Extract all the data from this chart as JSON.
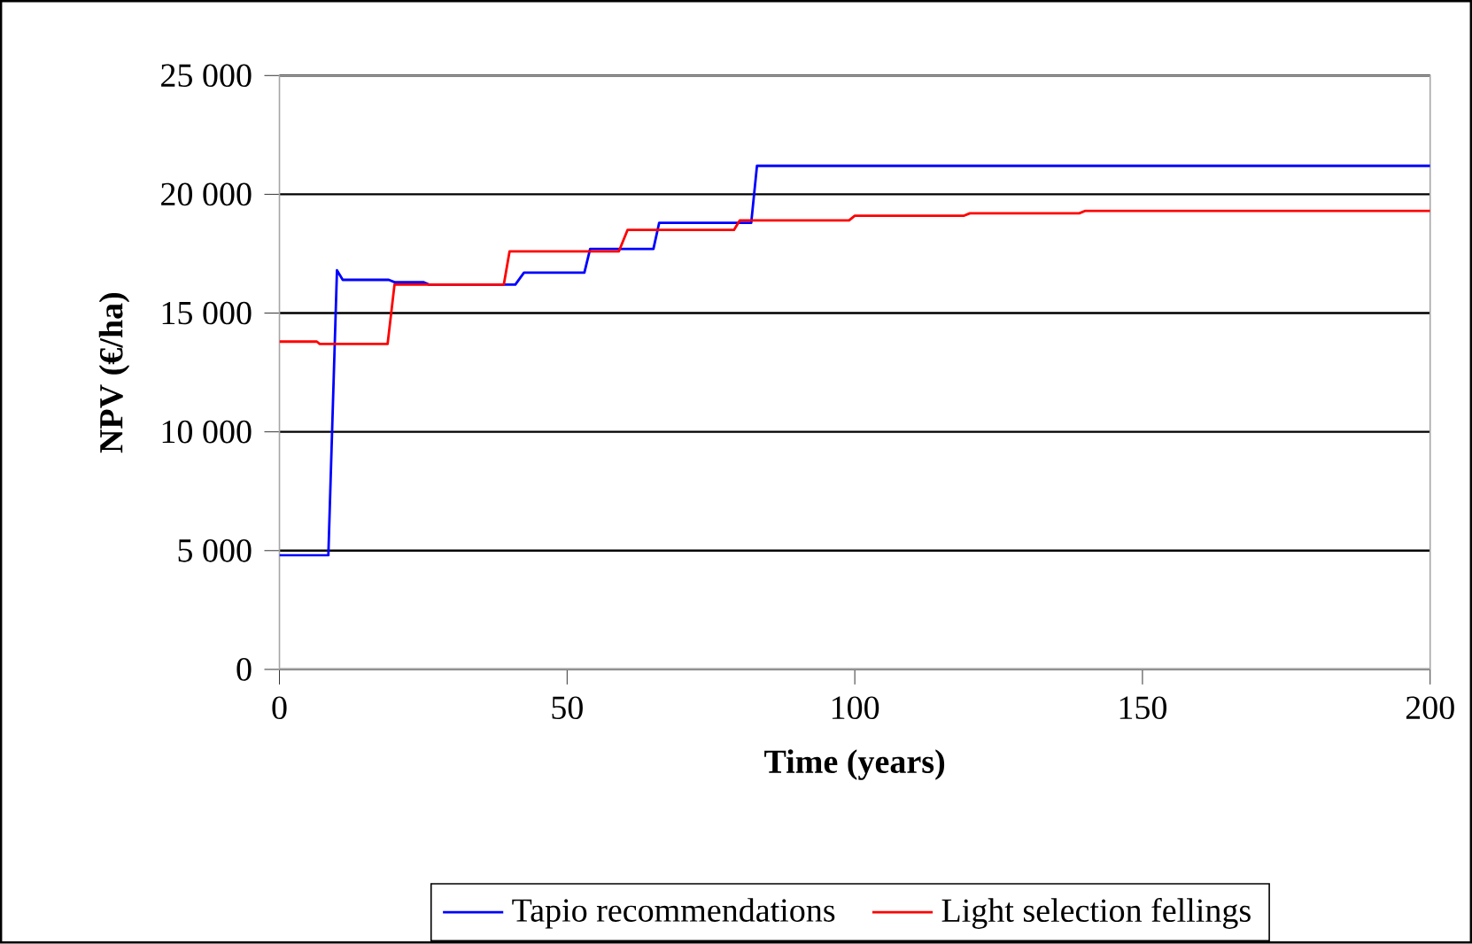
{
  "chart_data": {
    "type": "line",
    "xlabel": "Time (years)",
    "ylabel": "NPV (€/ha)",
    "xlim": [
      0,
      200
    ],
    "xticks": [
      0,
      50,
      100,
      150,
      200
    ],
    "ylim": [
      0,
      25000
    ],
    "yticks": [
      0,
      {
        "value": 5000,
        "label": "5 000"
      },
      {
        "value": 10000,
        "label": "10 000"
      },
      {
        "value": 15000,
        "label": "15 000"
      },
      {
        "value": 20000,
        "label": "20 000"
      },
      {
        "value": 25000,
        "label": "25 000"
      }
    ],
    "grid": "y",
    "legend": "bottom",
    "marker": "none",
    "line_style": "solid",
    "series": [
      {
        "name": "Tapio recommendations",
        "color": "#0000ff",
        "x": [
          0,
          8.5,
          10,
          11,
          19,
          20,
          25,
          26,
          41,
          42.5,
          53,
          54,
          65,
          66,
          82,
          83,
          200
        ],
        "values": [
          4800,
          4800,
          16800,
          16400,
          16400,
          16300,
          16300,
          16200,
          16200,
          16700,
          16700,
          17700,
          17700,
          18800,
          18800,
          21200,
          21200
        ]
      },
      {
        "name": "Light selection fellings",
        "color": "#ff0000",
        "x": [
          0,
          6.5,
          7,
          18.8,
          20,
          39,
          40,
          59,
          60.5,
          79,
          80,
          99,
          100,
          119,
          120,
          139,
          140,
          200
        ],
        "values": [
          13800,
          13800,
          13700,
          13700,
          16200,
          16200,
          17600,
          17600,
          18500,
          18500,
          18900,
          18900,
          19100,
          19100,
          19200,
          19200,
          19300,
          19300
        ]
      }
    ]
  }
}
